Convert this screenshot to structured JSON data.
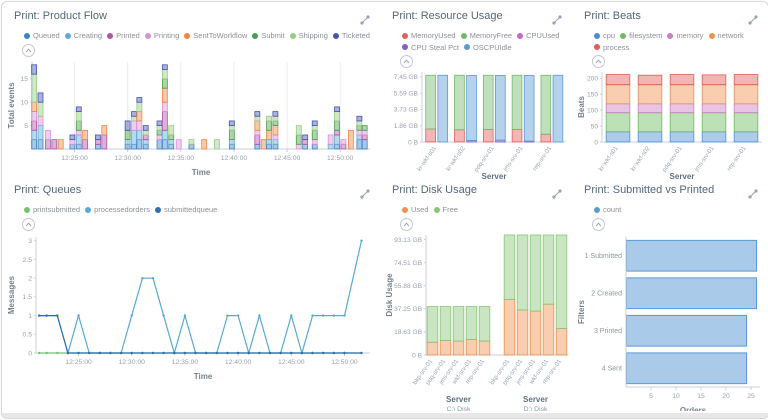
{
  "chart_data": {
    "product_flow": {
      "type": "bar",
      "title": "Print: Product Flow",
      "xlabel": "Time",
      "ylabel": "Total events",
      "xlim": [
        0,
        31.8
      ],
      "ylim": [
        0,
        18.6
      ],
      "yticks": [
        5,
        10,
        15
      ],
      "x_ticks": [
        {
          "x": 4,
          "label": "12:25:00"
        },
        {
          "x": 9,
          "label": "12:30:00"
        },
        {
          "x": 14,
          "label": "12:35:00"
        },
        {
          "x": 19,
          "label": "12:40:00"
        },
        {
          "x": 24,
          "label": "12:45:00"
        },
        {
          "x": 29,
          "label": "12:50:00"
        }
      ],
      "series": [
        {
          "name": "Queued",
          "color": "#3c83c8"
        },
        {
          "name": "Creating",
          "color": "#62aad8"
        },
        {
          "name": "Printed",
          "color": "#b054a8"
        },
        {
          "name": "Printing",
          "color": "#d893d8"
        },
        {
          "name": "SentToWorkflow",
          "color": "#ef8743"
        },
        {
          "name": "Submit",
          "color": "#4ba04b"
        },
        {
          "name": "Shipping",
          "color": "#97cd83"
        },
        {
          "name": "Ticketed",
          "color": "#4553b4"
        }
      ],
      "bars": [
        {
          "x": 0.2,
          "v": [
            2,
            2,
            2,
            2,
            2,
            0,
            6,
            2
          ]
        },
        {
          "x": 0.8,
          "v": [
            2,
            3,
            0,
            2,
            0,
            0,
            3,
            2
          ]
        },
        {
          "x": 1.5,
          "v": [
            0,
            0,
            2,
            2,
            0,
            0,
            0,
            0
          ]
        },
        {
          "x": 2.1,
          "v": [
            0,
            0,
            2,
            0,
            0,
            0,
            0,
            0
          ]
        },
        {
          "x": 2.7,
          "v": [
            0,
            0,
            0,
            0,
            2,
            0,
            0,
            0
          ]
        },
        {
          "x": 3.8,
          "v": [
            1,
            0,
            0,
            1,
            0,
            0,
            0,
            1
          ]
        },
        {
          "x": 4.4,
          "v": [
            1,
            2,
            0,
            1,
            0,
            2,
            2,
            1
          ]
        },
        {
          "x": 5.0,
          "v": [
            0,
            0,
            2,
            0,
            2,
            0,
            0,
            0
          ]
        },
        {
          "x": 6.2,
          "v": [
            1,
            0,
            1,
            0,
            0,
            0,
            0,
            1
          ]
        },
        {
          "x": 6.8,
          "v": [
            0,
            0,
            3,
            0,
            2,
            0,
            0,
            0
          ]
        },
        {
          "x": 9.0,
          "v": [
            1,
            1,
            0,
            0,
            0,
            2,
            0,
            2
          ]
        },
        {
          "x": 9.6,
          "v": [
            1,
            3,
            0,
            2,
            0,
            0,
            1,
            1
          ]
        },
        {
          "x": 10.1,
          "v": [
            2,
            2,
            0,
            2,
            2,
            0,
            2,
            1
          ]
        },
        {
          "x": 10.7,
          "v": [
            1,
            1,
            1,
            0,
            0,
            0,
            1,
            1
          ]
        },
        {
          "x": 12.0,
          "v": [
            2,
            0,
            0,
            1,
            0,
            1,
            1,
            1
          ]
        },
        {
          "x": 12.5,
          "v": [
            2,
            2,
            4,
            2,
            3,
            2,
            2,
            1
          ]
        },
        {
          "x": 13.1,
          "v": [
            1,
            1,
            0,
            0,
            0,
            1,
            2,
            0
          ]
        },
        {
          "x": 13.8,
          "v": [
            0,
            0,
            0,
            2,
            0,
            0,
            0,
            0
          ]
        },
        {
          "x": 15.0,
          "v": [
            1,
            0,
            0,
            0,
            0,
            0,
            1,
            0
          ]
        },
        {
          "x": 16.2,
          "v": [
            0,
            0,
            0,
            0,
            2,
            0,
            0,
            0
          ]
        },
        {
          "x": 17.4,
          "v": [
            0,
            0,
            0,
            0,
            0,
            0,
            2,
            0
          ]
        },
        {
          "x": 18.8,
          "v": [
            1,
            1,
            0,
            0,
            0,
            2,
            1,
            1
          ]
        },
        {
          "x": 21.2,
          "v": [
            1,
            0,
            2,
            1,
            2,
            0,
            1,
            1
          ]
        },
        {
          "x": 21.8,
          "v": [
            0,
            0,
            0,
            0,
            2,
            0,
            0,
            0
          ]
        },
        {
          "x": 22.3,
          "v": [
            1,
            1,
            0,
            0,
            2,
            2,
            1,
            0
          ]
        },
        {
          "x": 22.9,
          "v": [
            1,
            1,
            0,
            1,
            2,
            1,
            1,
            1
          ]
        },
        {
          "x": 25.1,
          "v": [
            0,
            0,
            0,
            1,
            0,
            2,
            2,
            0
          ]
        },
        {
          "x": 25.7,
          "v": [
            1,
            0,
            1,
            0,
            0,
            0,
            0,
            1
          ]
        },
        {
          "x": 26.6,
          "v": [
            1,
            0,
            0,
            1,
            0,
            2,
            1,
            1
          ]
        },
        {
          "x": 28.1,
          "v": [
            0,
            1,
            0,
            2,
            0,
            0,
            0,
            0
          ]
        },
        {
          "x": 28.7,
          "v": [
            1,
            2,
            1,
            0,
            0,
            2,
            2,
            1
          ]
        },
        {
          "x": 29.3,
          "v": [
            0,
            0,
            1,
            1,
            0,
            0,
            0,
            0
          ]
        },
        {
          "x": 30.0,
          "v": [
            0,
            0,
            0,
            0,
            4,
            0,
            0,
            0
          ]
        },
        {
          "x": 30.8,
          "v": [
            2,
            1,
            0,
            1,
            0,
            1,
            1,
            1
          ]
        },
        {
          "x": 31.3,
          "v": [
            2,
            0,
            1,
            1,
            0,
            1,
            0,
            0
          ]
        }
      ]
    },
    "resource_usage": {
      "type": "bar",
      "title": "Print: Resource Usage",
      "xlabel": "Server",
      "ylabel": "",
      "ylim": [
        0,
        8.6
      ],
      "yticks": [
        {
          "v": 0,
          "label": "0 B"
        },
        {
          "v": 2,
          "label": "1.86 GB"
        },
        {
          "v": 4,
          "label": "3.73 GB"
        },
        {
          "v": 6,
          "label": "5.59 GB"
        },
        {
          "v": 8,
          "label": "7.45 GB"
        }
      ],
      "series": [
        {
          "name": "MemoryUsed",
          "color": "#e25d5d"
        },
        {
          "name": "MemoryFree",
          "color": "#74b96b"
        },
        {
          "name": "CPUUsed",
          "color": "#c967c9"
        },
        {
          "name": "CPU Steal Pct",
          "color": "#7e5fc9"
        },
        {
          "name": "OSCPUIdle",
          "color": "#5b9bd5"
        }
      ],
      "categories": [
        "kr-wkf-s01",
        "kr-wkf-s02",
        "pdq-srv-01",
        "jms-srv-01",
        "rep-srv-01"
      ],
      "mem_used": [
        1.6,
        1.5,
        1.55,
        1.55,
        0.95
      ],
      "mem_free": [
        6.6,
        6.7,
        6.65,
        6.65,
        7.25
      ],
      "cpu_steal": [
        0,
        0.18,
        0.22,
        0.1,
        0
      ],
      "cpu_idle": [
        8.2,
        8.0,
        7.96,
        8.08,
        8.2
      ]
    },
    "beats": {
      "type": "bar",
      "title": "Print: Beats",
      "xlabel": "Server",
      "ylabel": "Beats",
      "ylim": [
        0,
        220
      ],
      "yticks": [
        0,
        50,
        100,
        150,
        200
      ],
      "categories": [
        "kr-wkf-s01",
        "kr-wkf-s02",
        "pdq-srv-01",
        "jms-srv-01",
        "rep-srv-01"
      ],
      "series": [
        {
          "name": "cpu",
          "color": "#4a8fd3",
          "values": [
            32,
            32,
            32,
            32,
            32
          ]
        },
        {
          "name": "filesystem",
          "color": "#6cbd5f",
          "values": [
            60,
            60,
            60,
            60,
            60
          ]
        },
        {
          "name": "memory",
          "color": "#cc7fc5",
          "values": [
            28,
            28,
            28,
            28,
            28
          ]
        },
        {
          "name": "network",
          "color": "#f0914f",
          "values": [
            60,
            60,
            60,
            60,
            60
          ]
        },
        {
          "name": "process",
          "color": "#e25c55",
          "values": [
            32,
            30,
            32,
            31,
            32
          ]
        }
      ]
    },
    "queues": {
      "type": "line",
      "title": "Print: Queues",
      "xlabel": "Time",
      "ylabel": "Messages",
      "xlim": [
        0,
        31.4
      ],
      "ylim": [
        0,
        3.1
      ],
      "yticks": [
        0,
        0.5,
        1,
        1.5,
        2,
        2.5,
        3
      ],
      "x_ticks": [
        {
          "x": 4,
          "label": "12:25:00"
        },
        {
          "x": 9,
          "label": "12:30:00"
        },
        {
          "x": 14,
          "label": "12:35:00"
        },
        {
          "x": 19,
          "label": "12:40:00"
        },
        {
          "x": 24,
          "label": "12:45:00"
        },
        {
          "x": 29,
          "label": "12:50:00"
        }
      ],
      "x": [
        0.3,
        1,
        2,
        3,
        4,
        5,
        6,
        7,
        8,
        9,
        10,
        11,
        12,
        13,
        14,
        15,
        16,
        17,
        18,
        19,
        20,
        21,
        22,
        23,
        24,
        25,
        26,
        27,
        28,
        29,
        30.6
      ],
      "series": [
        {
          "name": "printsubmitted",
          "color": "#77c277",
          "values": [
            0,
            0,
            0,
            0,
            0,
            0,
            0,
            0,
            0,
            0,
            0,
            0,
            0,
            0,
            0,
            0,
            0,
            0,
            0,
            0,
            0,
            0,
            0,
            0,
            0,
            0,
            0,
            0,
            0,
            0,
            0
          ]
        },
        {
          "name": "processedorders",
          "color": "#5aa9d6",
          "values": [
            1,
            1,
            1,
            0,
            1,
            0,
            0,
            0,
            0,
            1,
            2,
            2,
            1,
            0,
            1,
            0,
            0,
            0,
            1,
            1,
            0,
            1,
            0,
            0,
            1,
            0,
            1,
            1,
            1,
            1,
            3
          ]
        },
        {
          "name": "submittedqueue",
          "color": "#2f6eb5",
          "values": [
            1,
            1,
            1,
            0,
            0,
            0,
            0,
            0,
            0,
            0,
            0,
            0,
            0,
            0,
            0,
            0,
            0,
            0,
            0,
            0,
            0,
            0,
            0,
            0,
            0,
            0,
            0,
            0,
            0,
            0,
            0
          ]
        }
      ]
    },
    "disk_usage": {
      "type": "bar",
      "title": "Print: Disk Usage",
      "ylabel": "Disk Usage",
      "ylim": [
        0,
        104
      ],
      "yticks": [
        {
          "v": 0,
          "label": "0 B"
        },
        {
          "v": 20,
          "label": "18.63 GB"
        },
        {
          "v": 40,
          "label": "37.25 GB"
        },
        {
          "v": 60,
          "label": "55.88 GB"
        },
        {
          "v": 80,
          "label": "74.51 GB"
        },
        {
          "v": 100,
          "label": "93.13 GB"
        }
      ],
      "series": [
        {
          "name": "Used",
          "color": "#f0914f"
        },
        {
          "name": "Free",
          "color": "#88c578"
        }
      ],
      "groups": [
        {
          "label": "Server",
          "sublabel": "C:\\ Disk",
          "servers": [
            "bkp-srv-01",
            "pdq-srv-01",
            "jms-srv-01",
            "wkf-srv-01",
            "rep-srv-01"
          ],
          "used": [
            11,
            12.5,
            12,
            13.5,
            12
          ],
          "total": [
            42,
            42,
            42,
            42,
            42
          ]
        },
        {
          "label": "Server",
          "sublabel": "D:\\ Disk",
          "servers": [
            "bkp-srv-01",
            "pdq-srv-01",
            "jms-srv-01",
            "wkf-srv-01",
            "rep-srv-01"
          ],
          "used": [
            48,
            39,
            38,
            44,
            23
          ],
          "total": [
            104,
            104,
            104,
            104,
            104
          ]
        }
      ]
    },
    "submitted_vs_printed": {
      "type": "bar-horizontal",
      "title": "Print: Submitted vs Printed",
      "xlabel": "Orders",
      "ylabel": "Filters",
      "xlim": [
        0,
        26.8
      ],
      "xticks": [
        5,
        10,
        15,
        20,
        25
      ],
      "series": [
        {
          "name": "count",
          "color": "#5b9bd5"
        }
      ],
      "categories": [
        "1 Submitted",
        "2 Created",
        "3 Printed",
        "4 Sent"
      ],
      "values": [
        26,
        26,
        24,
        24
      ]
    }
  }
}
